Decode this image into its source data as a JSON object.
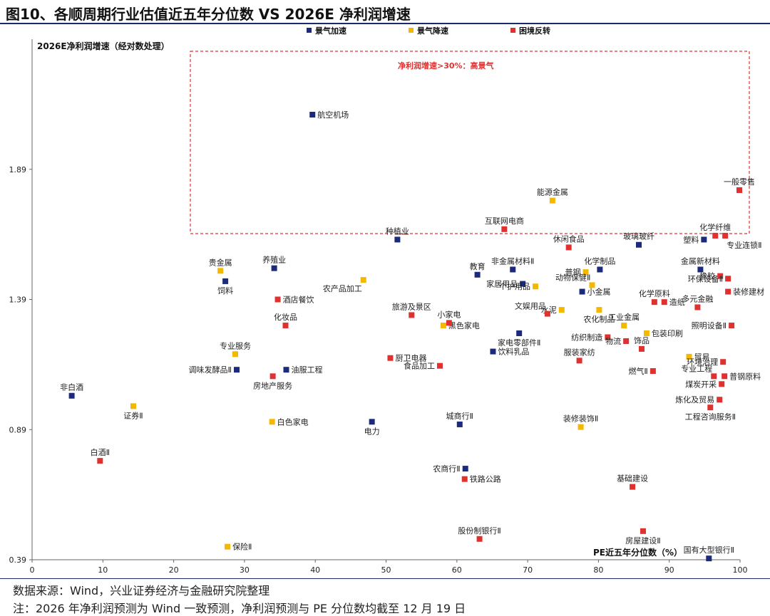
{
  "header": {
    "title": "图10、各顺周期行业估值近五年分位数  VS 2026E 净利润增速"
  },
  "footer": {
    "source": "数据来源：Wind，兴业证券经济与金融研究院整理",
    "note": "注：2026 年净利润预测为 Wind 一致预测，净利润预测与 PE 分位数均截至 12 月 19 日"
  },
  "colors": {
    "accel": "#1b2a7a",
    "decel": "#f5b800",
    "reversal": "#e03131",
    "box": "#e03131"
  },
  "chart_data": {
    "type": "scatter",
    "xlabel": "PE近五年分位数（%）",
    "ylabel": "2026E净利润增速（经对数处理）",
    "xlim": [
      0,
      100
    ],
    "ylim": [
      0.39,
      2.39
    ],
    "xticks": [
      "0",
      "10",
      "20",
      "30",
      "40",
      "50",
      "60",
      "70",
      "80",
      "90",
      "100"
    ],
    "yticks": [
      "0.39",
      "0.89",
      "1.39",
      "1.89"
    ],
    "annotation": "净利润增速>30%：高景气",
    "series": [
      {
        "name": "景气加速",
        "color": "#1b2a7a",
        "points": [
          {
            "x": 39.6,
            "y": 2.1,
            "label": "航空机场"
          },
          {
            "x": 51.6,
            "y": 1.62,
            "label": "种植业"
          },
          {
            "x": 85.7,
            "y": 1.6,
            "label": "玻璃玻纤"
          },
          {
            "x": 94.9,
            "y": 1.62,
            "label": "塑料"
          },
          {
            "x": 34.2,
            "y": 1.51,
            "label": "养殖业"
          },
          {
            "x": 27.3,
            "y": 1.46,
            "label": "饲料"
          },
          {
            "x": 62.9,
            "y": 1.485,
            "label": "教育"
          },
          {
            "x": 67.9,
            "y": 1.505,
            "label": "非金属材料Ⅱ"
          },
          {
            "x": 80.2,
            "y": 1.505,
            "label": "化学制品"
          },
          {
            "x": 94.4,
            "y": 1.505,
            "label": "金属新材料"
          },
          {
            "x": 69.3,
            "y": 1.45,
            "label": "家居用品"
          },
          {
            "x": 77.7,
            "y": 1.42,
            "label": "小金属"
          },
          {
            "x": 68.8,
            "y": 1.26,
            "label": "家电零部件Ⅱ"
          },
          {
            "x": 65.1,
            "y": 1.19,
            "label": "饮料乳品"
          },
          {
            "x": 28.9,
            "y": 1.12,
            "label": "调味发酵品Ⅱ"
          },
          {
            "x": 35.9,
            "y": 1.12,
            "label": "油服工程"
          },
          {
            "x": 5.6,
            "y": 1.02,
            "label": "非白酒"
          },
          {
            "x": 48.0,
            "y": 0.92,
            "label": "电力"
          },
          {
            "x": 60.4,
            "y": 0.91,
            "label": "城商行Ⅱ"
          },
          {
            "x": 61.2,
            "y": 0.74,
            "label": "农商行Ⅱ"
          },
          {
            "x": 95.6,
            "y": 0.395,
            "label": "国有大型银行Ⅱ"
          }
        ]
      },
      {
        "name": "景气降速",
        "color": "#f5b800",
        "points": [
          {
            "x": 73.5,
            "y": 1.77,
            "label": "能源金属"
          },
          {
            "x": 26.6,
            "y": 1.5,
            "label": "贵金属"
          },
          {
            "x": 78.2,
            "y": 1.495,
            "label": "普钢"
          },
          {
            "x": 46.8,
            "y": 1.465,
            "label": "农产品加工"
          },
          {
            "x": 79.1,
            "y": 1.445,
            "label": "动物保健Ⅱ"
          },
          {
            "x": 71.1,
            "y": 1.44,
            "label": "个护用品"
          },
          {
            "x": 74.8,
            "y": 1.35,
            "label": "水泥"
          },
          {
            "x": 80.1,
            "y": 1.35,
            "label": "农化制品"
          },
          {
            "x": 58.1,
            "y": 1.29,
            "label": "黑色家电"
          },
          {
            "x": 83.6,
            "y": 1.29,
            "label": "工业金属"
          },
          {
            "x": 86.8,
            "y": 1.26,
            "label": "包装印刷"
          },
          {
            "x": 28.7,
            "y": 1.18,
            "label": "专业服务"
          },
          {
            "x": 92.8,
            "y": 1.17,
            "label": "贸易"
          },
          {
            "x": 14.3,
            "y": 0.98,
            "label": "证券Ⅱ"
          },
          {
            "x": 33.9,
            "y": 0.92,
            "label": "白色家电"
          },
          {
            "x": 77.5,
            "y": 0.9,
            "label": "装修装饰Ⅱ"
          },
          {
            "x": 27.6,
            "y": 0.44,
            "label": "保险Ⅱ"
          }
        ]
      },
      {
        "name": "困境反转",
        "color": "#e03131",
        "points": [
          {
            "x": 99.9,
            "y": 1.81,
            "label": "一般零售"
          },
          {
            "x": 66.7,
            "y": 1.66,
            "label": "互联网电商"
          },
          {
            "x": 75.8,
            "y": 1.59,
            "label": "休闲食品"
          },
          {
            "x": 96.5,
            "y": 1.635,
            "label": "化学纤维"
          },
          {
            "x": 97.9,
            "y": 1.635,
            "label": "专业连锁Ⅱ"
          },
          {
            "x": 97.2,
            "y": 1.48,
            "label": "橡胶"
          },
          {
            "x": 98.3,
            "y": 1.47,
            "label": "环保设备Ⅱ"
          },
          {
            "x": 98.3,
            "y": 1.42,
            "label": "装修建材"
          },
          {
            "x": 34.7,
            "y": 1.39,
            "label": "酒店餐饮"
          },
          {
            "x": 87.9,
            "y": 1.38,
            "label": "化学原料"
          },
          {
            "x": 89.3,
            "y": 1.38,
            "label": "造纸"
          },
          {
            "x": 94.0,
            "y": 1.36,
            "label": "多元金融"
          },
          {
            "x": 53.6,
            "y": 1.33,
            "label": "旅游及景区"
          },
          {
            "x": 58.9,
            "y": 1.3,
            "label": "小家电"
          },
          {
            "x": 72.8,
            "y": 1.335,
            "label": "文娱用品"
          },
          {
            "x": 35.8,
            "y": 1.29,
            "label": "化妆品"
          },
          {
            "x": 98.8,
            "y": 1.29,
            "label": "照明设备Ⅱ"
          },
          {
            "x": 81.3,
            "y": 1.245,
            "label": "纺织制造"
          },
          {
            "x": 83.9,
            "y": 1.23,
            "label": "物流"
          },
          {
            "x": 86.1,
            "y": 1.2,
            "label": "饰品"
          },
          {
            "x": 77.3,
            "y": 1.155,
            "label": "服装家纺"
          },
          {
            "x": 50.6,
            "y": 1.165,
            "label": "厨卫电器"
          },
          {
            "x": 57.6,
            "y": 1.135,
            "label": "食品加工"
          },
          {
            "x": 97.6,
            "y": 1.15,
            "label": "环境治理"
          },
          {
            "x": 87.7,
            "y": 1.115,
            "label": "燃气Ⅱ"
          },
          {
            "x": 96.3,
            "y": 1.095,
            "label": "专业工程"
          },
          {
            "x": 97.8,
            "y": 1.095,
            "label": "普钢原料"
          },
          {
            "x": 34.0,
            "y": 1.095,
            "label": "房地产服务"
          },
          {
            "x": 97.4,
            "y": 1.065,
            "label": "煤炭开采"
          },
          {
            "x": 97.1,
            "y": 1.005,
            "label": "炼化及贸易"
          },
          {
            "x": 95.8,
            "y": 0.975,
            "label": "工程咨询服务Ⅱ"
          },
          {
            "x": 9.6,
            "y": 0.77,
            "label": "白酒Ⅱ"
          },
          {
            "x": 61.1,
            "y": 0.7,
            "label": "铁路公路"
          },
          {
            "x": 84.8,
            "y": 0.67,
            "label": "基础建设"
          },
          {
            "x": 86.3,
            "y": 0.5,
            "label": "房屋建设Ⅱ"
          },
          {
            "x": 63.2,
            "y": 0.47,
            "label": "股份制银行Ⅱ"
          }
        ]
      }
    ]
  }
}
